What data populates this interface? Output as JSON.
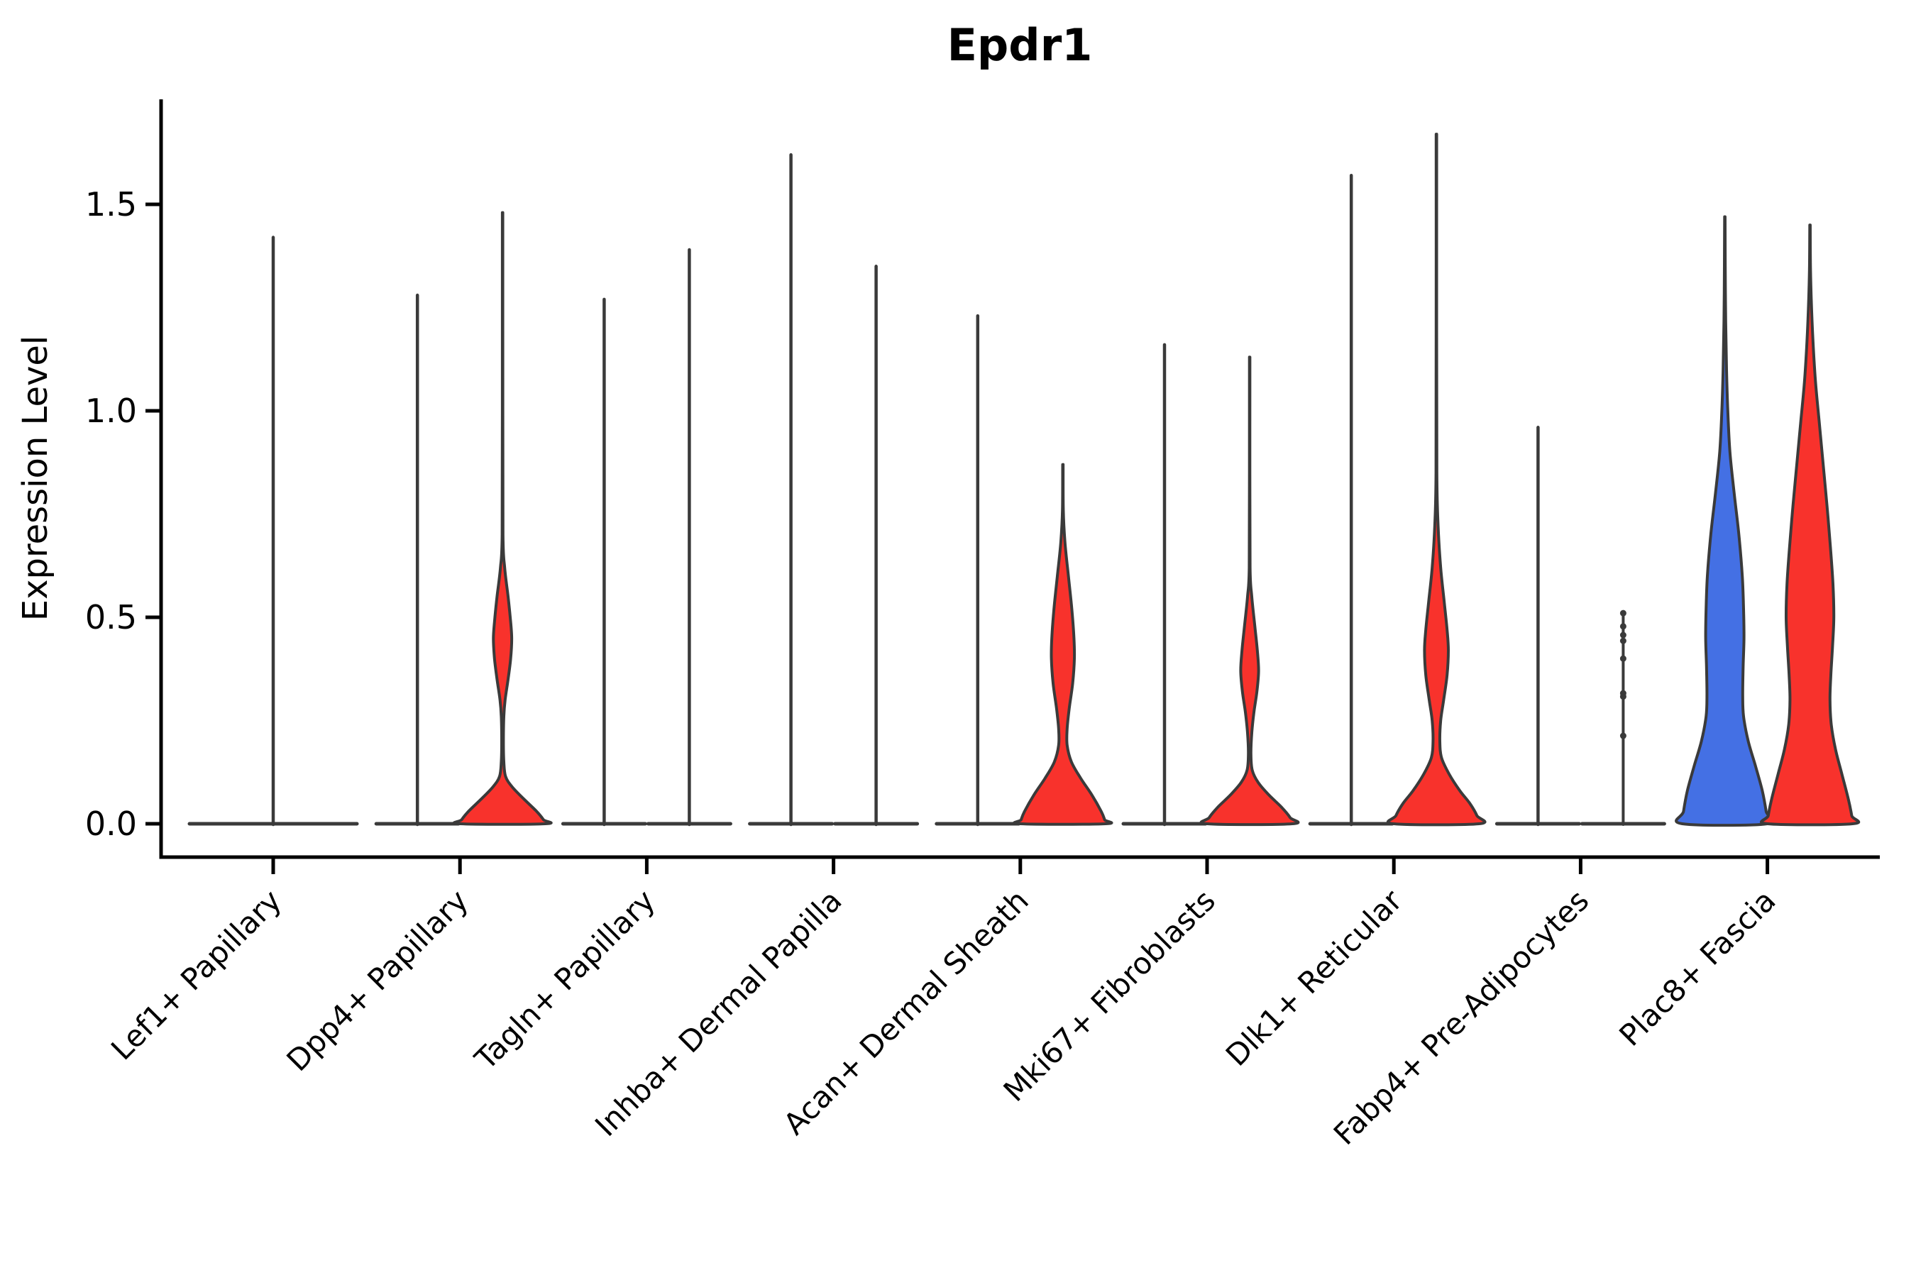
{
  "title": "Epdr1",
  "y_axis": {
    "label": "Expression Level",
    "ticks": [
      0.0,
      0.5,
      1.0,
      1.5
    ],
    "tick_labels": [
      "0.0",
      "0.5",
      "1.0",
      "1.5"
    ]
  },
  "colors": {
    "group1_fill": "#4470E4",
    "group2_fill": "#F8322C",
    "outline": "#3A3A3A",
    "axis": "#000000",
    "background": "#FFFFFF"
  },
  "chart_data": {
    "type": "violin",
    "title": "Epdr1",
    "ylabel": "Expression Level",
    "ylim": [
      -0.08,
      1.75
    ],
    "grid": false,
    "legend": "none",
    "categories": [
      "Lef1+ Papillary",
      "Dpp4+ Papillary",
      "Tagln+ Papillary",
      "Inhba+ Dermal Papilla",
      "Acan+ Dermal Sheath",
      "Mki67+ Fibroblasts",
      "Dlk1+ Reticular",
      "Fabp4+ Pre-Adipocytes",
      "Plac8+ Fascia"
    ],
    "violins": [
      {
        "category": "Lef1+ Papillary",
        "items": [
          {
            "group": "single",
            "style": "spike",
            "color": "none",
            "max_expression": 1.42,
            "width_units": 2
          }
        ]
      },
      {
        "category": "Dpp4+ Papillary",
        "items": [
          {
            "group": "g1",
            "style": "spike",
            "color": "none",
            "max_expression": 1.28,
            "width_units": 1
          },
          {
            "group": "g2",
            "style": "density",
            "color": "group2_fill",
            "max_expression": 1.48,
            "width_units": 1,
            "profile": [
              [
                1.48,
                0.005
              ],
              [
                1.0,
                0.005
              ],
              [
                0.7,
                0.01
              ],
              [
                0.62,
                0.05
              ],
              [
                0.55,
                0.13
              ],
              [
                0.5,
                0.18
              ],
              [
                0.45,
                0.215
              ],
              [
                0.4,
                0.19
              ],
              [
                0.35,
                0.13
              ],
              [
                0.3,
                0.06
              ],
              [
                0.26,
                0.03
              ],
              [
                0.2,
                0.02
              ],
              [
                0.15,
                0.03
              ],
              [
                0.115,
                0.07
              ],
              [
                0.09,
                0.22
              ],
              [
                0.06,
                0.5
              ],
              [
                0.03,
                0.8
              ],
              [
                0.01,
                0.96
              ],
              [
                0,
                1
              ]
            ]
          }
        ]
      },
      {
        "category": "Tagln+ Papillary",
        "items": [
          {
            "group": "g1",
            "style": "spike",
            "color": "none",
            "max_expression": 1.27,
            "width_units": 1
          },
          {
            "group": "g2",
            "style": "spike",
            "color": "none",
            "max_expression": 1.39,
            "width_units": 1
          }
        ]
      },
      {
        "category": "Inhba+ Dermal Papilla",
        "items": [
          {
            "group": "g1",
            "style": "spike",
            "color": "none",
            "max_expression": 1.62,
            "width_units": 1
          },
          {
            "group": "g2",
            "style": "spike",
            "color": "none",
            "max_expression": 1.35,
            "width_units": 1
          }
        ]
      },
      {
        "category": "Acan+ Dermal Sheath",
        "items": [
          {
            "group": "g1",
            "style": "spike",
            "color": "none",
            "max_expression": 1.23,
            "width_units": 1
          },
          {
            "group": "g2",
            "style": "density",
            "color": "group2_fill",
            "max_expression": 0.87,
            "width_units": 1,
            "profile": [
              [
                0.87,
                0.005
              ],
              [
                0.76,
                0.01
              ],
              [
                0.68,
                0.05
              ],
              [
                0.6,
                0.13
              ],
              [
                0.52,
                0.21
              ],
              [
                0.45,
                0.26
              ],
              [
                0.4,
                0.27
              ],
              [
                0.34,
                0.23
              ],
              [
                0.28,
                0.15
              ],
              [
                0.23,
                0.1
              ],
              [
                0.19,
                0.1
              ],
              [
                0.15,
                0.2
              ],
              [
                0.11,
                0.42
              ],
              [
                0.07,
                0.68
              ],
              [
                0.03,
                0.9
              ],
              [
                0.01,
                0.98
              ],
              [
                0,
                1
              ]
            ]
          }
        ]
      },
      {
        "category": "Mki67+ Fibroblasts",
        "items": [
          {
            "group": "g1",
            "style": "spike",
            "color": "none",
            "max_expression": 1.16,
            "width_units": 1
          },
          {
            "group": "g2",
            "style": "density",
            "color": "group2_fill",
            "max_expression": 1.13,
            "width_units": 1,
            "profile": [
              [
                1.13,
                0.005
              ],
              [
                0.85,
                0.005
              ],
              [
                0.62,
                0.01
              ],
              [
                0.55,
                0.05
              ],
              [
                0.48,
                0.12
              ],
              [
                0.42,
                0.18
              ],
              [
                0.37,
                0.21
              ],
              [
                0.32,
                0.17
              ],
              [
                0.27,
                0.1
              ],
              [
                0.22,
                0.05
              ],
              [
                0.17,
                0.03
              ],
              [
                0.13,
                0.06
              ],
              [
                0.1,
                0.2
              ],
              [
                0.07,
                0.45
              ],
              [
                0.04,
                0.75
              ],
              [
                0.015,
                0.95
              ],
              [
                0,
                1
              ]
            ]
          }
        ]
      },
      {
        "category": "Dlk1+ Reticular",
        "items": [
          {
            "group": "g1",
            "style": "spike",
            "color": "none",
            "max_expression": 1.57,
            "width_units": 1
          },
          {
            "group": "g2",
            "style": "density",
            "color": "group2_fill",
            "max_expression": 1.67,
            "width_units": 1,
            "profile": [
              [
                1.67,
                0.005
              ],
              [
                1.2,
                0.005
              ],
              [
                0.85,
                0.01
              ],
              [
                0.72,
                0.04
              ],
              [
                0.62,
                0.1
              ],
              [
                0.54,
                0.18
              ],
              [
                0.47,
                0.25
              ],
              [
                0.42,
                0.28
              ],
              [
                0.36,
                0.25
              ],
              [
                0.3,
                0.17
              ],
              [
                0.25,
                0.1
              ],
              [
                0.2,
                0.08
              ],
              [
                0.16,
                0.12
              ],
              [
                0.12,
                0.3
              ],
              [
                0.08,
                0.55
              ],
              [
                0.05,
                0.78
              ],
              [
                0.02,
                0.95
              ],
              [
                0,
                1
              ]
            ]
          }
        ]
      },
      {
        "category": "Fabp4+ Pre-Adipocytes",
        "items": [
          {
            "group": "g1",
            "style": "spike",
            "color": "none",
            "max_expression": 0.96,
            "width_units": 1
          },
          {
            "group": "g2",
            "style": "dots",
            "color": "none",
            "max_expression": 0.51,
            "width_units": 1,
            "dot_values": [
              0.51,
              0.478,
              0.457,
              0.443,
              0.4,
              0.316,
              0.308,
              0.213
            ]
          }
        ]
      },
      {
        "category": "Plac8+ Fascia",
        "items": [
          {
            "group": "g1",
            "style": "density",
            "color": "group1_fill",
            "max_expression": 1.47,
            "width_units": 1,
            "profile": [
              [
                1.47,
                0.005
              ],
              [
                1.35,
                0.01
              ],
              [
                1.22,
                0.02
              ],
              [
                1.1,
                0.04
              ],
              [
                1.0,
                0.07
              ],
              [
                0.9,
                0.12
              ],
              [
                0.8,
                0.22
              ],
              [
                0.7,
                0.33
              ],
              [
                0.6,
                0.41
              ],
              [
                0.52,
                0.44
              ],
              [
                0.45,
                0.45
              ],
              [
                0.38,
                0.43
              ],
              [
                0.31,
                0.42
              ],
              [
                0.26,
                0.44
              ],
              [
                0.2,
                0.55
              ],
              [
                0.14,
                0.72
              ],
              [
                0.08,
                0.88
              ],
              [
                0.03,
                0.97
              ],
              [
                0,
                1
              ]
            ]
          },
          {
            "group": "g2",
            "style": "density",
            "color": "group2_fill",
            "max_expression": 1.45,
            "width_units": 1,
            "profile": [
              [
                1.45,
                0.005
              ],
              [
                1.36,
                0.01
              ],
              [
                1.27,
                0.03
              ],
              [
                1.17,
                0.07
              ],
              [
                1.07,
                0.13
              ],
              [
                0.97,
                0.22
              ],
              [
                0.87,
                0.31
              ],
              [
                0.77,
                0.4
              ],
              [
                0.67,
                0.48
              ],
              [
                0.58,
                0.54
              ],
              [
                0.5,
                0.56
              ],
              [
                0.43,
                0.53
              ],
              [
                0.36,
                0.49
              ],
              [
                0.3,
                0.47
              ],
              [
                0.24,
                0.5
              ],
              [
                0.18,
                0.6
              ],
              [
                0.12,
                0.75
              ],
              [
                0.06,
                0.9
              ],
              [
                0.02,
                0.98
              ],
              [
                0,
                1
              ]
            ]
          }
        ]
      }
    ]
  }
}
